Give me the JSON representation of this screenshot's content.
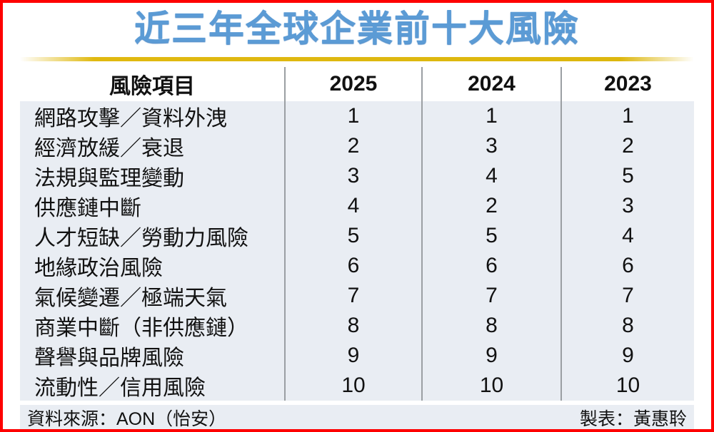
{
  "title": "近三年全球企業前十大風險",
  "chart_data": {
    "type": "table",
    "title": "近三年全球企業前十大風險",
    "columns": [
      "風險項目",
      "2025",
      "2024",
      "2023"
    ],
    "rows": [
      [
        "網路攻擊／資料外洩",
        1,
        1,
        1
      ],
      [
        "經濟放緩／衰退",
        2,
        3,
        2
      ],
      [
        "法規與監理變動",
        3,
        4,
        5
      ],
      [
        "供應鏈中斷",
        4,
        2,
        3
      ],
      [
        "人才短缺／勞動力風險",
        5,
        5,
        4
      ],
      [
        "地緣政治風險",
        6,
        6,
        6
      ],
      [
        "氣候變遷／極端天氣",
        7,
        7,
        7
      ],
      [
        "商業中斷（非供應鏈）",
        8,
        8,
        8
      ],
      [
        "聲譽與品牌風險",
        9,
        9,
        9
      ],
      [
        "流動性／信用風險",
        10,
        10,
        10
      ]
    ],
    "layout_hints": {
      "striped_rows": "odd data rows shaded",
      "grid": "vertical separators only, no horizontal lines"
    }
  },
  "footer": {
    "source": "資料來源：AON（怡安）",
    "credit": "製表：黃惠聆"
  },
  "colors": {
    "title_blue": "#5b9bd5",
    "accent_gold": "#e0b910",
    "frame_red": "#fe0000",
    "stripe_blue_gray": "#e9edf3",
    "separator_gray": "#9b9fa3",
    "text_black": "#111111"
  }
}
